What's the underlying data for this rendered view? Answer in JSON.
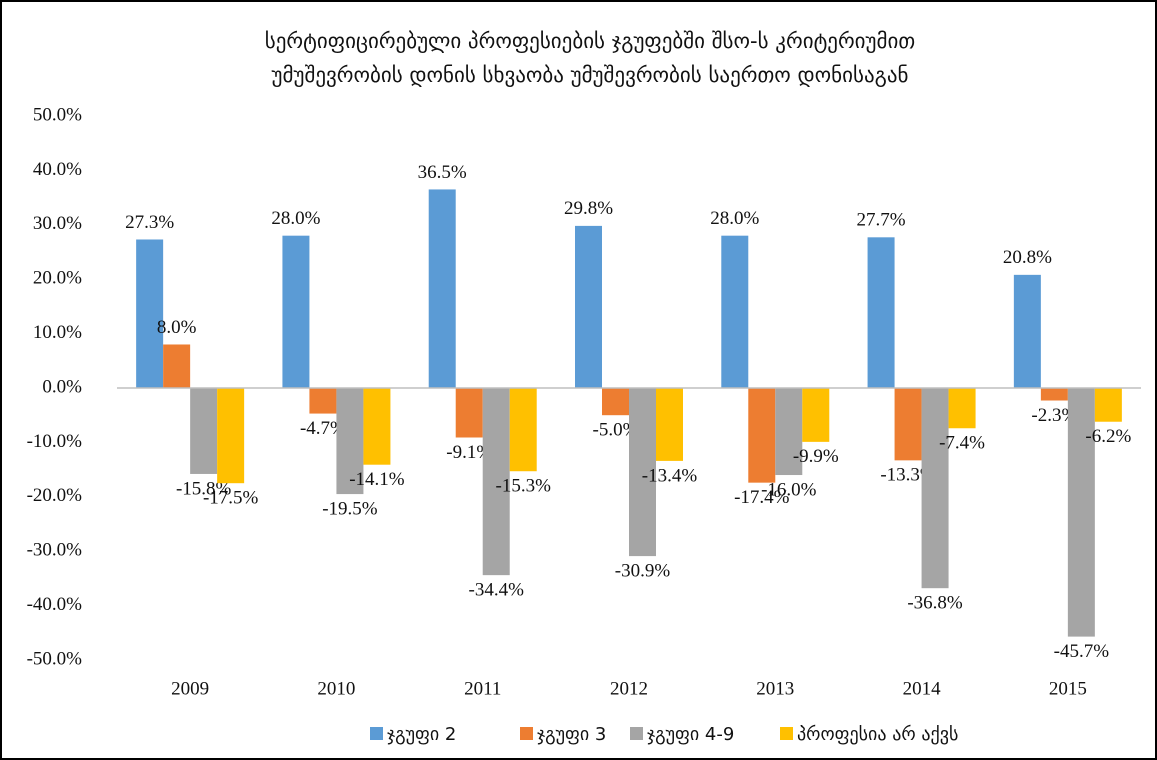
{
  "chart_data": {
    "type": "bar",
    "title": [
      "სერტიფიცირებული პროფესიების ჯგუფებში შსო-ს კრიტერიუმით",
      "უმუშევრობის დონის სხვაობა უმუშევრობის საერთო დონისაგან"
    ],
    "categories": [
      "2009",
      "2010",
      "2011",
      "2012",
      "2013",
      "2014",
      "2015"
    ],
    "series": [
      {
        "name": "ჯგუფი 2",
        "color": "#5b9bd5",
        "values": [
          27.3,
          28.0,
          36.5,
          29.8,
          28.0,
          27.7,
          20.8
        ],
        "value_labels": [
          "27.3%",
          "28.0%",
          "36.5%",
          "29.8%",
          "28.0%",
          "27.7%",
          "20.8%"
        ]
      },
      {
        "name": "ჯგუფი 3",
        "color": "#ed7d31",
        "values": [
          8.0,
          -4.7,
          -9.1,
          -5.0,
          -17.4,
          -13.3,
          -2.3
        ],
        "value_labels": [
          "8.0%",
          "-4.7%",
          "-9.1%",
          "-5.0%",
          "-17.4%",
          "-13.3%",
          "-2.3%"
        ]
      },
      {
        "name": "ჯგუფი 4-9",
        "color": "#a5a5a5",
        "values": [
          -15.8,
          -19.5,
          -34.4,
          -30.9,
          -16.0,
          -36.8,
          -45.7
        ],
        "value_labels": [
          "-15.8%",
          "-19.5%",
          "-34.4%",
          "-30.9%",
          "-16.0%",
          "-36.8%",
          "-45.7%"
        ]
      },
      {
        "name": "პროფესია არ აქვს",
        "color": "#ffc000",
        "values": [
          -17.5,
          -14.1,
          -15.3,
          -13.4,
          -9.9,
          -7.4,
          -6.2
        ],
        "value_labels": [
          "-17.5%",
          "-14.1%",
          "-15.3%",
          "-13.4%",
          "-9.9%",
          "-7.4%",
          "-6.2%"
        ]
      }
    ],
    "ylim": [
      -50,
      50
    ],
    "yticks": [
      {
        "value": -50,
        "label": "-50.0%"
      },
      {
        "value": -40,
        "label": "-40.0%"
      },
      {
        "value": -30,
        "label": "-30.0%"
      },
      {
        "value": -20,
        "label": "-20.0%"
      },
      {
        "value": -10,
        "label": "-10.0%"
      },
      {
        "value": 0,
        "label": "0.0%"
      },
      {
        "value": 10,
        "label": "10.0%"
      },
      {
        "value": 20,
        "label": "20.0%"
      },
      {
        "value": 30,
        "label": "30.0%"
      },
      {
        "value": 40,
        "label": "40.0%"
      },
      {
        "value": 50,
        "label": "50.0%"
      }
    ],
    "grid": false,
    "legend": "bottom"
  }
}
